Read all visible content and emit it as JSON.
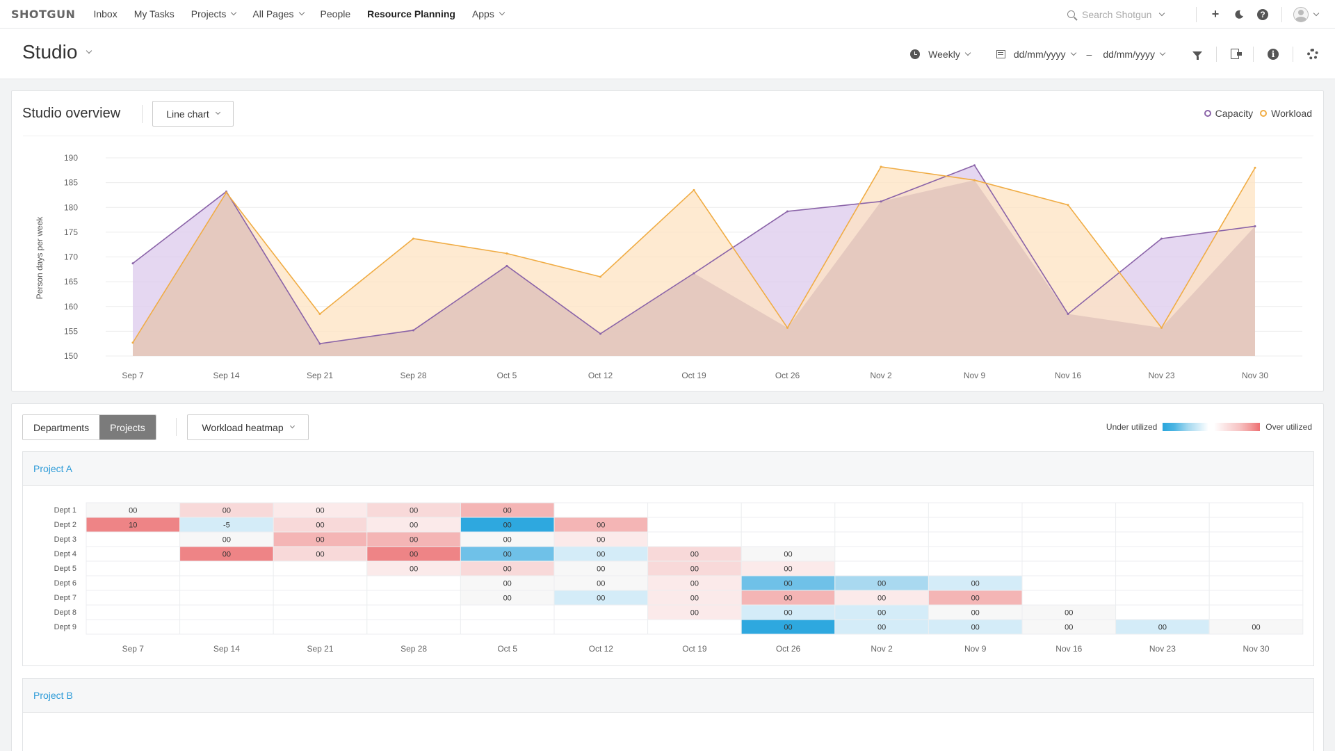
{
  "nav": {
    "logo": "SHOTGUN",
    "items": [
      {
        "label": "Inbox",
        "dropdown": false,
        "active": false
      },
      {
        "label": "My Tasks",
        "dropdown": false,
        "active": false
      },
      {
        "label": "Projects",
        "dropdown": true,
        "active": false
      },
      {
        "label": "All Pages",
        "dropdown": true,
        "active": false
      },
      {
        "label": "People",
        "dropdown": false,
        "active": false
      },
      {
        "label": "Resource Planning",
        "dropdown": false,
        "active": true
      },
      {
        "label": "Apps",
        "dropdown": true,
        "active": false
      }
    ],
    "search_placeholder": "Search Shotgun",
    "icons": [
      "plus-icon",
      "moon-icon",
      "help-icon",
      "avatar-icon"
    ]
  },
  "header": {
    "title": "Studio",
    "period": "Weekly",
    "date_from": "dd/mm/yyyy",
    "date_to": "dd/mm/yyyy",
    "separator": "–"
  },
  "overview": {
    "title": "Studio overview",
    "view_select": "Line chart",
    "legend": [
      {
        "label": "Capacity",
        "color": "#8a63a8"
      },
      {
        "label": "Workload",
        "color": "#f0ac44"
      }
    ]
  },
  "chart_data": {
    "type": "area",
    "title": "",
    "xlabel": "",
    "ylabel": "Person days per week",
    "ylim": [
      150,
      190
    ],
    "yticks": [
      150,
      155,
      160,
      165,
      170,
      175,
      180,
      185,
      190
    ],
    "categories": [
      "Sep 7",
      "Sep 14",
      "Sep 21",
      "Sep 28",
      "Oct 5",
      "Oct 12",
      "Oct 19",
      "Oct 26",
      "Nov 2",
      "Nov 9",
      "Nov 16",
      "Nov 23",
      "Nov 30"
    ],
    "grid": true,
    "legend_position": "top-right",
    "series": [
      {
        "name": "Capacity",
        "color": "#8a63a8",
        "fill": "#dcc9ec",
        "values": [
          168.7,
          183.2,
          152.5,
          155.2,
          168.2,
          154.5,
          166.7,
          179.2,
          181.2,
          188.5,
          158.5,
          173.7,
          176.2
        ]
      },
      {
        "name": "Workload",
        "color": "#f0ac44",
        "fill": "#fde3c1",
        "values": [
          152.7,
          183.0,
          158.5,
          173.7,
          170.7,
          166.0,
          183.5,
          155.7,
          188.2,
          185.5,
          180.5,
          155.7,
          188.0
        ]
      }
    ]
  },
  "heatmap": {
    "tabs": [
      {
        "label": "Departments",
        "active": false
      },
      {
        "label": "Projects",
        "active": true
      }
    ],
    "view_select": "Workload heatmap",
    "under_label": "Under utilized",
    "over_label": "Over utilized",
    "weeks": [
      "Sep 7",
      "Sep 14",
      "Sep 21",
      "Sep 28",
      "Oct 5",
      "Oct 12",
      "Oct 19",
      "Oct 26",
      "Nov 2",
      "Nov 9",
      "Nov 16",
      "Nov 23",
      "Nov 30"
    ],
    "projects": [
      {
        "name": "Project A",
        "departments": [
          {
            "name": "Dept 1",
            "cells": [
              [
                "00",
                "neutral"
              ],
              [
                "00",
                "r1"
              ],
              [
                "00",
                "r0"
              ],
              [
                "00",
                "r1"
              ],
              [
                "00",
                "r2"
              ],
              null,
              null,
              null,
              null,
              null,
              null,
              null,
              null
            ]
          },
          {
            "name": "Dept 2",
            "cells": [
              [
                "10",
                "r3"
              ],
              [
                "-5",
                "b0"
              ],
              [
                "00",
                "r1"
              ],
              [
                "00",
                "r0"
              ],
              [
                "00",
                "b3"
              ],
              [
                "00",
                "r2"
              ],
              null,
              null,
              null,
              null,
              null,
              null,
              null
            ]
          },
          {
            "name": "Dept 3",
            "cells": [
              null,
              [
                "00",
                "neutral"
              ],
              [
                "00",
                "r2"
              ],
              [
                "00",
                "r2"
              ],
              [
                "00",
                "neutral"
              ],
              [
                "00",
                "r0"
              ],
              null,
              null,
              null,
              null,
              null,
              null,
              null
            ]
          },
          {
            "name": "Dept 4",
            "cells": [
              null,
              [
                "00",
                "r3"
              ],
              [
                "00",
                "r1"
              ],
              [
                "00",
                "r3"
              ],
              [
                "00",
                "b2"
              ],
              [
                "00",
                "b0"
              ],
              [
                "00",
                "r1"
              ],
              [
                "00",
                "neutral"
              ],
              null,
              null,
              null,
              null,
              null
            ]
          },
          {
            "name": "Dept 5",
            "cells": [
              null,
              null,
              null,
              [
                "00",
                "r0"
              ],
              [
                "00",
                "r1"
              ],
              [
                "00",
                "neutral"
              ],
              [
                "00",
                "r1"
              ],
              [
                "00",
                "r0"
              ],
              null,
              null,
              null,
              null,
              null
            ]
          },
          {
            "name": "Dept 6",
            "cells": [
              null,
              null,
              null,
              null,
              [
                "00",
                "neutral"
              ],
              [
                "00",
                "neutral"
              ],
              [
                "00",
                "r0"
              ],
              [
                "00",
                "b2"
              ],
              [
                "00",
                "b1"
              ],
              [
                "00",
                "b0"
              ],
              null,
              null,
              null
            ]
          },
          {
            "name": "Dept 7",
            "cells": [
              null,
              null,
              null,
              null,
              [
                "00",
                "neutral"
              ],
              [
                "00",
                "b0"
              ],
              [
                "00",
                "r0"
              ],
              [
                "00",
                "r2"
              ],
              [
                "00",
                "r0"
              ],
              [
                "00",
                "r2"
              ],
              null,
              null,
              null
            ]
          },
          {
            "name": "Dept 8",
            "cells": [
              null,
              null,
              null,
              null,
              null,
              null,
              [
                "00",
                "r0"
              ],
              [
                "00",
                "b0"
              ],
              [
                "00",
                "b0"
              ],
              [
                "00",
                "neutral"
              ],
              [
                "00",
                "neutral"
              ],
              null,
              null
            ]
          },
          {
            "name": "Dept 9",
            "cells": [
              null,
              null,
              null,
              null,
              null,
              null,
              null,
              [
                "00",
                "b3"
              ],
              [
                "00",
                "b0"
              ],
              [
                "00",
                "b0"
              ],
              [
                "00",
                "neutral"
              ],
              [
                "00",
                "b0"
              ],
              [
                "00",
                "neutral"
              ]
            ]
          }
        ]
      },
      {
        "name": "Project B",
        "departments": []
      }
    ],
    "colors": {
      "neutral": "#f7f7f7",
      "r0": "#fbeaea",
      "r1": "#f8d9d9",
      "r2": "#f4b5b5",
      "r3": "#ee8486",
      "b0": "#d4ecf8",
      "b1": "#a9d9f0",
      "b2": "#6fc1e8",
      "b3": "#2ea8df"
    }
  }
}
